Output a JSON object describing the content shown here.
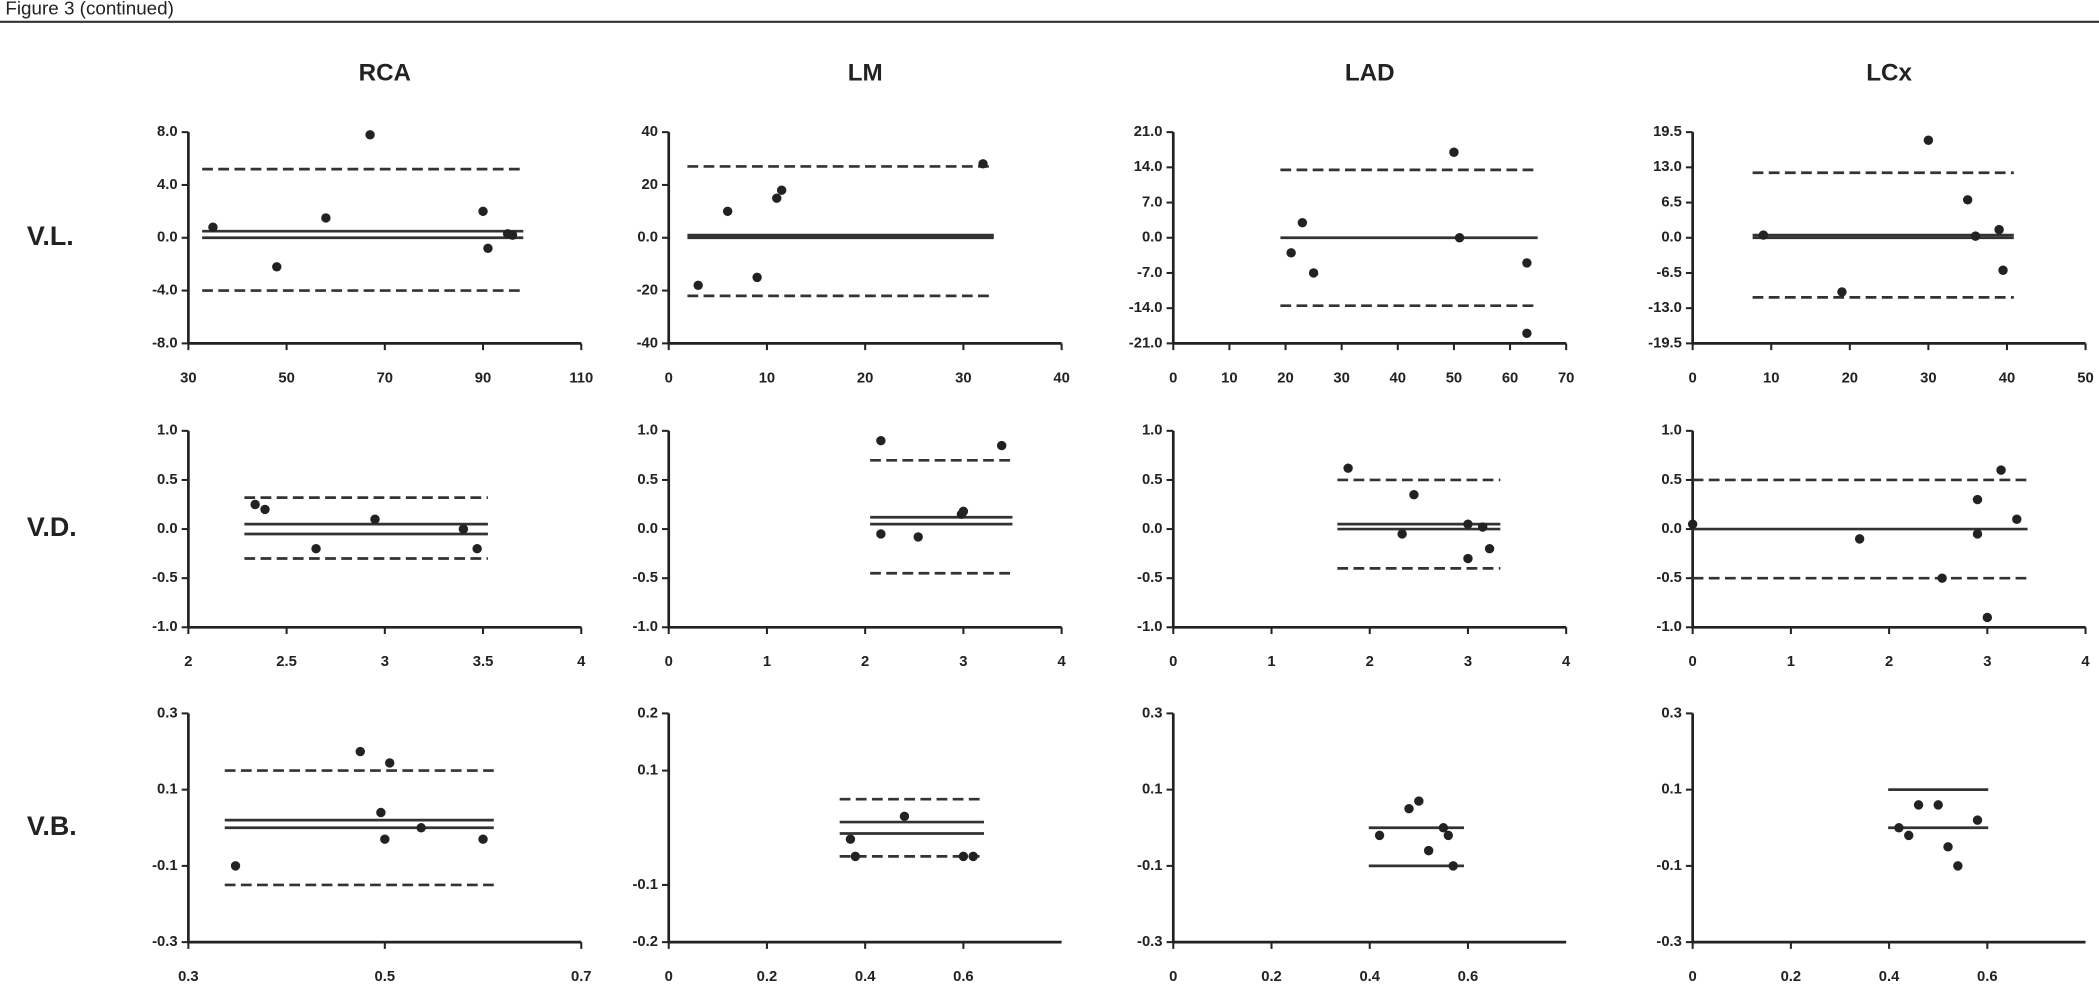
{
  "header": "Figure 3 (continued)",
  "row_labels": [
    "V.L.",
    "V.D.",
    "V.B."
  ],
  "chart_data": [
    {
      "type": "scatter",
      "title": "RCA",
      "color": "#222222",
      "x": [
        35,
        48,
        67,
        58,
        90,
        91,
        95,
        96
      ],
      "y": [
        0.8,
        -2.2,
        7.8,
        1.5,
        2.0,
        -0.8,
        0.3,
        0.2
      ],
      "xlim": [
        30,
        110
      ],
      "xticks": [
        30,
        50,
        70,
        90,
        110
      ],
      "ylim": [
        -8,
        8
      ],
      "yticks": [
        {
          "value": -8,
          "label": "-8.0"
        },
        {
          "value": -4,
          "label": "-4.0"
        },
        {
          "value": 0,
          "label": "0.0"
        },
        {
          "value": 4,
          "label": "4.0"
        },
        {
          "value": 8,
          "label": "8.0"
        }
      ],
      "reference_lines": [
        5.2,
        0.5,
        0,
        -4
      ]
    },
    {
      "type": "scatter",
      "title": "LM",
      "color": "#222222",
      "x": [
        3,
        6,
        9,
        11,
        11.5,
        32
      ],
      "y": [
        -18,
        10,
        -15,
        15,
        18,
        28
      ],
      "xlim": [
        0,
        40
      ],
      "xticks": [
        0,
        10,
        20,
        30,
        40
      ],
      "ylim": [
        -40,
        40
      ],
      "yticks": [
        -40,
        -20,
        {
          "value": 0,
          "label": "0.0"
        },
        20,
        40
      ],
      "reference_lines": [
        27,
        1,
        0,
        -22
      ]
    },
    {
      "type": "scatter",
      "title": "LAD",
      "color": "#222222",
      "x": [
        21,
        23,
        25,
        50,
        51,
        63,
        63
      ],
      "y": [
        -3,
        3,
        -7,
        17,
        0,
        -5,
        -19
      ],
      "xlim": [
        0,
        70
      ],
      "xticks": [
        0,
        10,
        20,
        30,
        40,
        50,
        60,
        70
      ],
      "ylim": [
        -21,
        21
      ],
      "yticks": [
        {
          "value": -21,
          "label": "-21.0"
        },
        {
          "value": -14,
          "label": "-14.0"
        },
        {
          "value": -7,
          "label": "-7.0"
        },
        {
          "value": 0,
          "label": "0.0"
        },
        {
          "value": 7,
          "label": "7.0"
        },
        {
          "value": 14,
          "label": "14.0"
        },
        {
          "value": 21,
          "label": "21.0"
        }
      ],
      "reference_lines": [
        13.5,
        0,
        -13.5
      ]
    },
    {
      "type": "scatter",
      "title": "LCx",
      "color": "#222222",
      "x": [
        9,
        19,
        30,
        35,
        36,
        39,
        39.5
      ],
      "y": [
        0.5,
        -10,
        18,
        7,
        0.3,
        1.5,
        -6
      ],
      "xlim": [
        0,
        50
      ],
      "xticks": [
        0,
        10,
        20,
        30,
        40,
        50
      ],
      "ylim": [
        -19.5,
        19.5
      ],
      "yticks": [
        -19.5,
        {
          "value": -13,
          "label": "-13.0"
        },
        -6.5,
        {
          "value": 0,
          "label": "0.0"
        },
        6.5,
        {
          "value": 13,
          "label": "13.0"
        },
        19.5
      ],
      "reference_lines": [
        12,
        0.5,
        0,
        -11
      ]
    },
    {
      "type": "scatter",
      "color": "#222222",
      "x": [
        2.34,
        2.39,
        2.65,
        2.95,
        3.4,
        3.47
      ],
      "y": [
        0.25,
        0.2,
        -0.2,
        0.1,
        0.0,
        -0.2
      ],
      "xlim": [
        2,
        4
      ],
      "xticks": [
        2,
        2.5,
        3,
        3.5,
        4
      ],
      "ylim": [
        -1,
        1
      ],
      "yticks": [
        {
          "value": -1,
          "label": "-1.0"
        },
        -0.5,
        {
          "value": 0,
          "label": "0.0"
        },
        0.5,
        {
          "value": 1,
          "label": "1.0"
        }
      ],
      "reference_lines": [
        0.32,
        0.05,
        -0.05,
        -0.3
      ]
    },
    {
      "type": "scatter",
      "color": "#222222",
      "x": [
        2.16,
        2.16,
        2.54,
        2.98,
        3.0,
        3.39
      ],
      "y": [
        0.9,
        -0.05,
        -0.08,
        0.15,
        0.18,
        0.85
      ],
      "xlim": [
        0,
        4
      ],
      "xticks": [
        0,
        1,
        2,
        3,
        4
      ],
      "ylim": [
        -1,
        1
      ],
      "yticks": [
        {
          "value": -1,
          "label": "-1.0"
        },
        -0.5,
        {
          "value": 0,
          "label": "0.0"
        },
        0.5,
        {
          "value": 1,
          "label": "1.0"
        }
      ],
      "reference_lines": [
        0.7,
        0.12,
        0.05,
        -0.45
      ]
    },
    {
      "type": "scatter",
      "color": "#222222",
      "x": [
        1.78,
        2.45,
        2.33,
        3.0,
        3.15,
        3.0,
        3.22
      ],
      "y": [
        0.62,
        0.35,
        -0.05,
        0.05,
        0.02,
        -0.3,
        -0.2
      ],
      "xlim": [
        0,
        4
      ],
      "xticks": [
        0,
        1,
        2,
        3,
        4
      ],
      "ylim": [
        -1,
        1
      ],
      "yticks": [
        {
          "value": -1,
          "label": "-1.0"
        },
        -0.5,
        {
          "value": 0,
          "label": "0.0"
        },
        0.5,
        {
          "value": 1,
          "label": "1.0"
        }
      ],
      "reference_lines": [
        0.5,
        0.05,
        0,
        -0.4
      ]
    },
    {
      "type": "scatter",
      "color": "#222222",
      "x": [
        0,
        1.7,
        2.54,
        2.9,
        3.0,
        3.14,
        3.3,
        2.9
      ],
      "y": [
        0.05,
        -0.1,
        -0.5,
        0.3,
        -0.9,
        0.6,
        0.1,
        -0.05
      ],
      "xlim": [
        0,
        4
      ],
      "xticks": [
        0,
        1,
        2,
        3,
        4
      ],
      "ylim": [
        -1,
        1
      ],
      "yticks": [
        {
          "value": -1,
          "label": "-1.0"
        },
        -0.5,
        {
          "value": 0,
          "label": "0.0"
        },
        0.5,
        {
          "value": 1,
          "label": "1.0"
        }
      ],
      "reference_lines": [
        0.5,
        0,
        -0.5
      ]
    },
    {
      "type": "scatter",
      "color": "#222222",
      "x": [
        0.348,
        0.475,
        0.505,
        0.496,
        0.5,
        0.537,
        0.6
      ],
      "y": [
        -0.1,
        0.2,
        0.17,
        0.04,
        -0.03,
        0.0,
        -0.03
      ],
      "xlim": [
        0.3,
        0.7
      ],
      "xticks": [
        0.3,
        0.5,
        0.7
      ],
      "ylim": [
        -0.3,
        0.3
      ],
      "yticks": [
        -0.3,
        -0.1,
        0.1,
        0.3
      ],
      "reference_lines": [
        0.15,
        0.02,
        0,
        -0.15
      ]
    },
    {
      "type": "scatter",
      "color": "#222222",
      "x": [
        0.38,
        0.37,
        0.48,
        0.6,
        0.62
      ],
      "y": [
        -0.05,
        -0.02,
        0.02,
        -0.05,
        -0.05
      ],
      "xlim": [
        0,
        0.8
      ],
      "xticks": [
        0,
        0.2,
        0.4,
        0.6
      ],
      "ylim": [
        -0.2,
        0.2
      ],
      "yticks": [
        -0.2,
        -0.1,
        0.1,
        0.2
      ],
      "reference_lines": [
        0.05,
        0.01,
        -0.01,
        -0.05
      ]
    },
    {
      "type": "scatter",
      "color": "#222222",
      "x": [
        0.42,
        0.48,
        0.5,
        0.52,
        0.55,
        0.56,
        0.57
      ],
      "y": [
        -0.02,
        0.05,
        0.07,
        -0.06,
        0.0,
        -0.02,
        -0.1
      ],
      "xlim": [
        0,
        0.8
      ],
      "xticks": [
        0,
        0.2,
        0.4,
        0.6
      ],
      "ylim": [
        -0.3,
        0.3
      ],
      "yticks": [
        -0.3,
        -0.1,
        0.1,
        0.3
      ],
      "reference_lines": [
        0,
        -0.1
      ]
    },
    {
      "type": "scatter",
      "color": "#222222",
      "x": [
        0.42,
        0.44,
        0.46,
        0.5,
        0.52,
        0.54,
        0.58
      ],
      "y": [
        0.0,
        -0.02,
        0.06,
        0.06,
        -0.05,
        -0.1,
        0.02
      ],
      "xlim": [
        0,
        0.8
      ],
      "xticks": [
        0,
        0.2,
        0.4,
        0.6
      ],
      "ylim": [
        -0.3,
        0.3
      ],
      "yticks": [
        -0.3,
        -0.1,
        0.1,
        0.3
      ],
      "reference_lines": [
        0.1,
        0
      ]
    }
  ]
}
